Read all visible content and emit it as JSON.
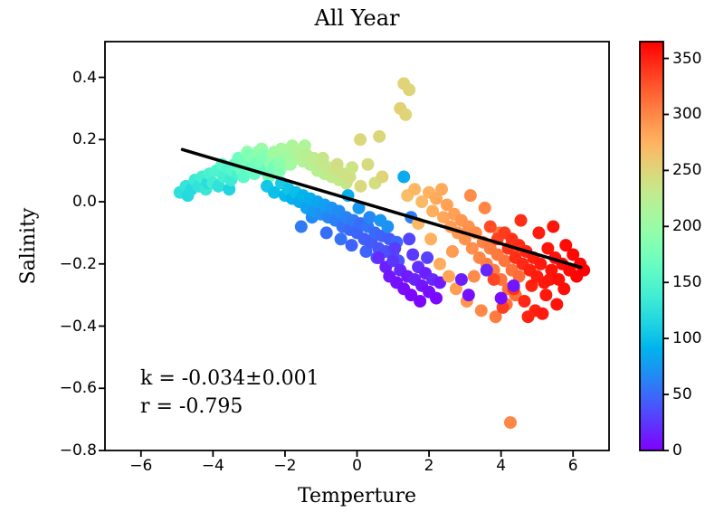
{
  "chart_data": {
    "type": "scatter",
    "title": "All Year",
    "xlabel": "Temperture",
    "ylabel": "Salinity",
    "xlim": [
      -7,
      7
    ],
    "ylim": [
      -0.8,
      0.515
    ],
    "xticks": [
      -6,
      -4,
      -2,
      0,
      2,
      4,
      6
    ],
    "yticks": [
      0.4,
      0.2,
      0.0,
      -0.2,
      -0.4,
      -0.6,
      -0.8
    ],
    "grid": false,
    "annotation": {
      "line1": "k = -0.034±0.001",
      "line2": "r = -0.795"
    },
    "trend_line": {
      "x": [
        -4.85,
        6.22
      ],
      "y": [
        0.168,
        -0.211
      ],
      "color": "#000000"
    },
    "colorbar": {
      "colormap": "rainbow",
      "vmin": 0,
      "vmax": 365,
      "ticks": [
        0,
        50,
        100,
        150,
        200,
        250,
        300,
        350
      ]
    },
    "point_color_meaning": "day-of-year",
    "points": [
      [
        -4.92,
        0.03,
        125
      ],
      [
        -4.75,
        0.05,
        130
      ],
      [
        -4.7,
        0.02,
        118
      ],
      [
        -4.6,
        0.04,
        120
      ],
      [
        -4.5,
        0.07,
        135
      ],
      [
        -4.4,
        0.05,
        128
      ],
      [
        -4.3,
        0.08,
        140
      ],
      [
        -4.2,
        0.04,
        132
      ],
      [
        -4.15,
        0.06,
        122
      ],
      [
        -4.1,
        0.09,
        145
      ],
      [
        -4.0,
        0.06,
        138
      ],
      [
        -3.9,
        0.1,
        148
      ],
      [
        -3.85,
        0.05,
        126
      ],
      [
        -3.75,
        0.12,
        155
      ],
      [
        -3.7,
        0.08,
        142
      ],
      [
        -3.6,
        0.11,
        150
      ],
      [
        -3.55,
        0.04,
        115
      ],
      [
        -3.5,
        0.07,
        136
      ],
      [
        -3.45,
        0.1,
        152
      ],
      [
        -3.3,
        0.09,
        144
      ],
      [
        -3.4,
        0.12,
        160
      ],
      [
        -3.3,
        0.14,
        170
      ],
      [
        -3.2,
        0.1,
        165
      ],
      [
        -3.15,
        0.08,
        158
      ],
      [
        -3.1,
        0.13,
        175
      ],
      [
        -3.05,
        0.16,
        198
      ],
      [
        -3.0,
        0.15,
        180
      ],
      [
        -2.95,
        0.11,
        168
      ],
      [
        -2.9,
        0.14,
        185
      ],
      [
        -2.85,
        0.09,
        166
      ],
      [
        -2.8,
        0.12,
        172
      ],
      [
        -2.75,
        0.16,
        190
      ],
      [
        -2.7,
        0.13,
        178
      ],
      [
        -2.65,
        0.17,
        200
      ],
      [
        -2.6,
        0.15,
        188
      ],
      [
        -2.55,
        0.1,
        162
      ],
      [
        -2.5,
        0.14,
        182
      ],
      [
        -2.45,
        0.08,
        176
      ],
      [
        -2.4,
        0.12,
        192
      ],
      [
        -2.35,
        0.15,
        195
      ],
      [
        -2.3,
        0.11,
        174
      ],
      [
        -2.2,
        0.13,
        186
      ],
      [
        -2.15,
        0.1,
        184
      ],
      [
        -2.1,
        0.14,
        196
      ],
      [
        -2.0,
        0.12,
        190
      ],
      [
        -2.3,
        0.16,
        205
      ],
      [
        -2.1,
        0.17,
        210
      ],
      [
        -1.9,
        0.15,
        208
      ],
      [
        -1.85,
        0.12,
        206
      ],
      [
        -1.8,
        0.18,
        215
      ],
      [
        -1.7,
        0.14,
        212
      ],
      [
        -1.6,
        0.16,
        220
      ],
      [
        -1.5,
        0.13,
        218
      ],
      [
        -1.45,
        0.18,
        216
      ],
      [
        -1.4,
        0.15,
        225
      ],
      [
        -1.3,
        0.12,
        222
      ],
      [
        -1.2,
        0.14,
        228
      ],
      [
        -1.1,
        0.1,
        224
      ],
      [
        -1.0,
        0.12,
        230
      ],
      [
        -0.95,
        0.14,
        233
      ],
      [
        -0.9,
        0.09,
        226
      ],
      [
        -0.8,
        0.11,
        232
      ],
      [
        -0.7,
        0.08,
        229
      ],
      [
        -0.6,
        0.1,
        235
      ],
      [
        -0.55,
        0.12,
        241
      ],
      [
        -0.5,
        0.07,
        231
      ],
      [
        -0.4,
        0.09,
        238
      ],
      [
        -0.3,
        0.06,
        234
      ],
      [
        -0.2,
        0.08,
        240
      ],
      [
        -0.14,
        0.11,
        236
      ],
      [
        0.09,
        0.2,
        248
      ],
      [
        0.1,
        0.05,
        246
      ],
      [
        0.3,
        0.12,
        244
      ],
      [
        0.5,
        0.06,
        242
      ],
      [
        0.62,
        0.21,
        249
      ],
      [
        0.7,
        0.08,
        250
      ],
      [
        1.2,
        0.3,
        254
      ],
      [
        1.3,
        0.38,
        252
      ],
      [
        1.35,
        0.28,
        251
      ],
      [
        1.45,
        0.36,
        250
      ],
      [
        -2.5,
        0.05,
        105
      ],
      [
        -2.3,
        0.03,
        100
      ],
      [
        -2.1,
        0.06,
        108
      ],
      [
        -2.0,
        0.02,
        95
      ],
      [
        -1.9,
        0.04,
        102
      ],
      [
        -1.8,
        0.01,
        90
      ],
      [
        -1.7,
        0.03,
        98
      ],
      [
        -1.6,
        0.0,
        85
      ],
      [
        -1.55,
        -0.08,
        58
      ],
      [
        -1.5,
        0.02,
        92
      ],
      [
        -1.4,
        -0.02,
        80
      ],
      [
        -1.3,
        0.01,
        88
      ],
      [
        -1.25,
        -0.05,
        66
      ],
      [
        -1.2,
        -0.03,
        75
      ],
      [
        -1.1,
        0.0,
        82
      ],
      [
        -1.0,
        -0.04,
        70
      ],
      [
        -0.9,
        -0.01,
        78
      ],
      [
        -0.85,
        -0.1,
        52
      ],
      [
        -0.8,
        -0.05,
        65
      ],
      [
        -0.7,
        -0.02,
        72
      ],
      [
        -0.6,
        -0.06,
        60
      ],
      [
        -0.5,
        -0.03,
        68
      ],
      [
        -0.45,
        -0.12,
        54
      ],
      [
        -0.4,
        -0.08,
        55
      ],
      [
        -0.3,
        -0.05,
        62
      ],
      [
        -0.25,
        0.02,
        88
      ],
      [
        -0.2,
        -0.09,
        50
      ],
      [
        -0.15,
        -0.14,
        46
      ],
      [
        -0.1,
        -0.06,
        58
      ],
      [
        0.0,
        -0.1,
        48
      ],
      [
        0.05,
        -0.02,
        75
      ],
      [
        0.1,
        -0.07,
        52
      ],
      [
        0.2,
        -0.12,
        45
      ],
      [
        0.25,
        -0.16,
        47
      ],
      [
        0.3,
        -0.08,
        56
      ],
      [
        0.35,
        -0.05,
        65
      ],
      [
        0.4,
        -0.13,
        42
      ],
      [
        0.5,
        -0.1,
        50
      ],
      [
        0.55,
        -0.18,
        43
      ],
      [
        0.6,
        -0.15,
        40
      ],
      [
        0.65,
        -0.06,
        73
      ],
      [
        0.7,
        -0.11,
        46
      ],
      [
        0.8,
        -0.16,
        38
      ],
      [
        0.85,
        -0.08,
        70
      ],
      [
        0.9,
        -0.12,
        44
      ],
      [
        1.0,
        -0.17,
        36
      ],
      [
        1.1,
        -0.13,
        48
      ],
      [
        1.15,
        -0.19,
        40
      ],
      [
        1.3,
        0.08,
        85
      ],
      [
        1.5,
        -0.05,
        60
      ],
      [
        0.6,
        -0.18,
        20
      ],
      [
        0.8,
        -0.21,
        15
      ],
      [
        0.9,
        -0.24,
        10
      ],
      [
        1.0,
        -0.19,
        25
      ],
      [
        1.05,
        -0.15,
        28
      ],
      [
        1.1,
        -0.26,
        8
      ],
      [
        1.2,
        -0.22,
        18
      ],
      [
        1.3,
        -0.28,
        5
      ],
      [
        1.4,
        -0.24,
        12
      ],
      [
        1.45,
        -0.12,
        32
      ],
      [
        1.5,
        -0.3,
        3
      ],
      [
        1.55,
        -0.17,
        26
      ],
      [
        1.6,
        -0.25,
        16
      ],
      [
        1.7,
        -0.21,
        22
      ],
      [
        1.75,
        -0.32,
        2
      ],
      [
        1.8,
        -0.27,
        9
      ],
      [
        1.9,
        -0.23,
        14
      ],
      [
        1.95,
        -0.18,
        30
      ],
      [
        2.0,
        -0.29,
        6
      ],
      [
        2.1,
        -0.25,
        19
      ],
      [
        2.2,
        -0.31,
        4
      ],
      [
        2.3,
        -0.26,
        11
      ],
      [
        1.4,
        0.02,
        268
      ],
      [
        1.6,
        0.04,
        272
      ],
      [
        1.7,
        -0.07,
        271
      ],
      [
        1.8,
        0.0,
        270
      ],
      [
        2.0,
        0.03,
        275
      ],
      [
        2.05,
        -0.12,
        276
      ],
      [
        2.1,
        -0.03,
        278
      ],
      [
        2.2,
        0.01,
        280
      ],
      [
        2.3,
        -0.2,
        279
      ],
      [
        2.35,
        0.04,
        281
      ],
      [
        2.4,
        -0.05,
        282
      ],
      [
        2.5,
        -0.01,
        285
      ],
      [
        2.55,
        -0.24,
        284
      ],
      [
        2.6,
        -0.08,
        288
      ],
      [
        2.65,
        -0.16,
        289
      ],
      [
        2.7,
        -0.04,
        286
      ],
      [
        2.75,
        -0.28,
        287
      ],
      [
        2.8,
        -0.1,
        290
      ],
      [
        2.9,
        -0.06,
        292
      ],
      [
        3.0,
        -0.12,
        294
      ],
      [
        3.05,
        -0.32,
        293
      ],
      [
        3.1,
        -0.08,
        295
      ],
      [
        3.15,
        0.02,
        297
      ],
      [
        3.2,
        -0.15,
        296
      ],
      [
        3.25,
        -0.24,
        298
      ],
      [
        3.3,
        -0.1,
        298
      ],
      [
        3.4,
        -0.18,
        300
      ],
      [
        3.45,
        -0.35,
        299
      ],
      [
        3.5,
        -0.13,
        302
      ],
      [
        3.55,
        -0.02,
        301
      ],
      [
        3.6,
        -0.2,
        304
      ],
      [
        3.7,
        -0.15,
        305
      ],
      [
        3.8,
        -0.22,
        306
      ],
      [
        3.85,
        -0.37,
        307
      ],
      [
        3.9,
        -0.17,
        308
      ],
      [
        3.95,
        -0.1,
        308
      ],
      [
        4.0,
        -0.25,
        310
      ],
      [
        4.1,
        -0.19,
        309
      ],
      [
        4.15,
        -0.33,
        310
      ],
      [
        4.2,
        -0.28,
        312
      ],
      [
        4.26,
        -0.71,
        300
      ],
      [
        4.3,
        -0.22,
        311
      ],
      [
        4.4,
        -0.3,
        313
      ],
      [
        4.45,
        -0.15,
        313
      ],
      [
        4.5,
        -0.24,
        314
      ],
      [
        3.7,
        -0.08,
        330
      ],
      [
        3.8,
        -0.25,
        332
      ],
      [
        3.9,
        -0.12,
        335
      ],
      [
        4.05,
        -0.34,
        337
      ],
      [
        4.1,
        -0.1,
        338
      ],
      [
        4.2,
        -0.15,
        340
      ],
      [
        4.3,
        -0.12,
        342
      ],
      [
        4.35,
        -0.28,
        343
      ],
      [
        4.4,
        -0.18,
        344
      ],
      [
        4.5,
        -0.14,
        345
      ],
      [
        4.55,
        -0.06,
        345
      ],
      [
        4.6,
        -0.2,
        346
      ],
      [
        4.65,
        -0.32,
        347
      ],
      [
        4.7,
        -0.16,
        348
      ],
      [
        4.75,
        -0.37,
        349
      ],
      [
        4.8,
        -0.22,
        350
      ],
      [
        4.85,
        -0.27,
        350
      ],
      [
        4.9,
        -0.18,
        351
      ],
      [
        4.95,
        -0.35,
        350
      ],
      [
        5.0,
        -0.24,
        352
      ],
      [
        5.05,
        -0.1,
        352
      ],
      [
        5.1,
        -0.2,
        353
      ],
      [
        5.15,
        -0.36,
        353
      ],
      [
        5.2,
        -0.26,
        354
      ],
      [
        5.25,
        -0.3,
        354
      ],
      [
        5.3,
        -0.15,
        355
      ],
      [
        5.35,
        -0.25,
        355
      ],
      [
        5.4,
        -0.22,
        356
      ],
      [
        5.45,
        -0.08,
        356
      ],
      [
        5.5,
        -0.18,
        357
      ],
      [
        5.55,
        -0.33,
        357
      ],
      [
        5.6,
        -0.25,
        358
      ],
      [
        5.7,
        -0.2,
        359
      ],
      [
        5.75,
        -0.28,
        359
      ],
      [
        5.8,
        -0.14,
        360
      ],
      [
        5.9,
        -0.22,
        361
      ],
      [
        6.0,
        -0.17,
        362
      ],
      [
        6.1,
        -0.24,
        363
      ],
      [
        6.2,
        -0.2,
        364
      ],
      [
        6.3,
        -0.22,
        365
      ],
      [
        2.9,
        -0.25,
        13
      ],
      [
        3.1,
        -0.3,
        7
      ],
      [
        3.6,
        -0.22,
        17
      ],
      [
        4.0,
        -0.31,
        5
      ],
      [
        4.35,
        -0.27,
        10
      ]
    ]
  }
}
